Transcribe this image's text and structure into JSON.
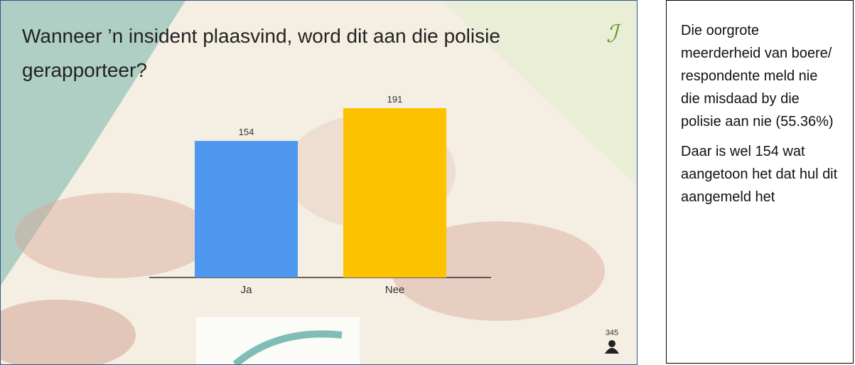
{
  "chart_data": {
    "type": "bar",
    "title": "Wanneer ’n insident plaasvind, word dit aan die polisie gerapporteer?",
    "categories": [
      "Ja",
      "Nee"
    ],
    "values": [
      154,
      191
    ],
    "colors": [
      "#4e97ef",
      "#fdc300"
    ],
    "participants": "345"
  },
  "notes": [
    "Die oorgrote meerderheid van boere/ respondente meld nie die misdaad by die polisie aan nie (55.36%)",
    "Daar is wel 154 wat aangetoon het dat hul dit aangemeld het"
  ]
}
